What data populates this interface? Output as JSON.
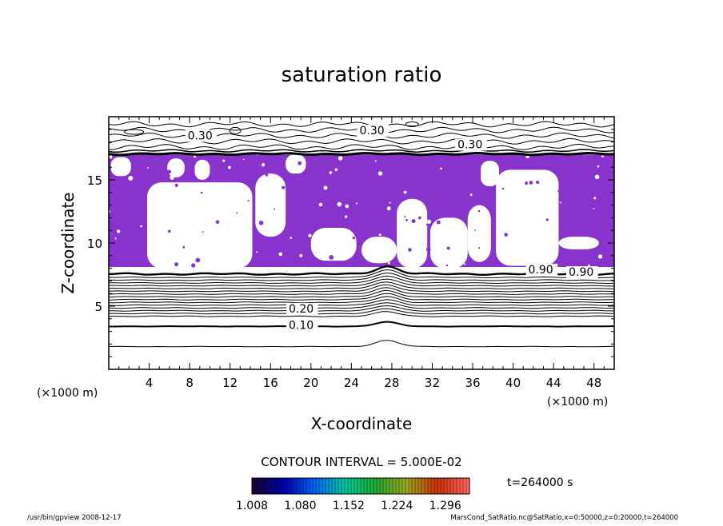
{
  "chart_data": {
    "type": "heatmap",
    "title": "saturation ratio",
    "xlabel": "X-coordinate",
    "ylabel": "Z-coordinate",
    "x_unit_label_left": "(×1000 m)",
    "x_unit_label_right": "(×1000 m)",
    "xlim": [
      0,
      50
    ],
    "ylim": [
      0,
      20
    ],
    "x_ticks": [
      4,
      8,
      12,
      16,
      20,
      24,
      28,
      32,
      36,
      40,
      44,
      48
    ],
    "y_ticks": [
      5,
      10,
      15
    ],
    "contour_interval_text": "CONTOUR INTERVAL = 5.000E-02",
    "time_text": "t=264000 s",
    "colorbar": {
      "tick_labels": [
        "1.008",
        "1.080",
        "1.152",
        "1.224",
        "1.296"
      ],
      "range": [
        1.008,
        1.332
      ],
      "colors": [
        "#1a0033",
        "#0000b0",
        "#0066ff",
        "#00cc99",
        "#22aa33",
        "#99aa22",
        "#cc3300",
        "#ff6666"
      ]
    },
    "fill_color": "#8833cc",
    "contour_labels": [
      {
        "text": "0.10",
        "x": 17.8,
        "z": 3.2
      },
      {
        "text": "0.20",
        "x": 17.8,
        "z": 4.5
      },
      {
        "text": "0.30",
        "x": 7.8,
        "z": 18.2
      },
      {
        "text": "0.30",
        "x": 24.8,
        "z": 18.6
      },
      {
        "text": "0.30",
        "x": 34.5,
        "z": 17.5
      },
      {
        "text": "0.90",
        "x": 41.5,
        "z": 7.6
      },
      {
        "text": "0.90",
        "x": 45.5,
        "z": 7.4
      }
    ],
    "grid": false,
    "legend": "none"
  },
  "footer": {
    "left": "/usr/bin/gpview   2008-12-17",
    "right": "MarsCond_SatRatio.nc@SatRatio,x=0:50000,z=0:20000,t=264000"
  }
}
